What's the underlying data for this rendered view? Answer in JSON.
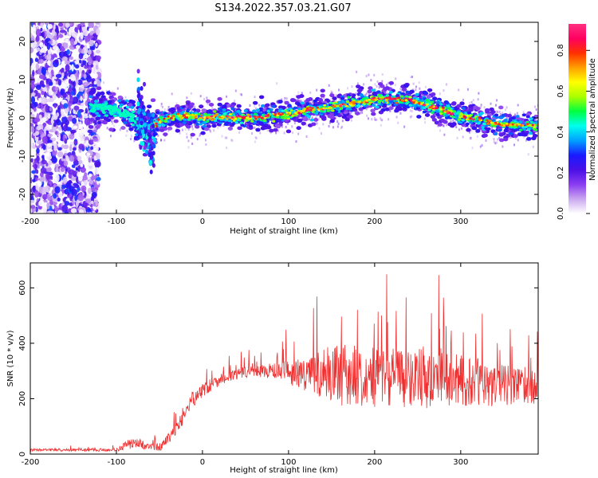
{
  "figure_title": "S134.2022.357.03.21.G07",
  "chart_data": [
    {
      "type": "heatmap",
      "panel": "spectrogram",
      "title": "S134.2022.357.03.21.G07",
      "xlabel": "Height of straight line (km)",
      "ylabel": "Frequency (Hz)",
      "xlim": [
        -200,
        390
      ],
      "ylim": [
        -25,
        25
      ],
      "x_ticks": [
        "-200",
        "-100",
        "0",
        "100",
        "200",
        "300"
      ],
      "y_ticks": [
        "-20",
        "-10",
        "0",
        "10",
        "20"
      ],
      "colorbar": {
        "label": "Normalized spectral amplitude",
        "range": [
          0,
          0.93
        ],
        "ticks": [
          "0.0",
          "0.2",
          "0.4",
          "0.6",
          "0.8"
        ],
        "colors": [
          "#ffffff",
          "#c9a6f0",
          "#8a3cf0",
          "#4a10e6",
          "#1a1aff",
          "#00a0ff",
          "#00ffee",
          "#00ff40",
          "#aaff00",
          "#ffff00",
          "#ffa000",
          "#ff3000",
          "#ff0060",
          "#ff3080"
        ]
      },
      "ridge_frequency_hz": {
        "x": [
          -120,
          -100,
          -80,
          -70,
          -60,
          -40,
          -20,
          0,
          20,
          40,
          60,
          80,
          100,
          120,
          140,
          160,
          180,
          200,
          220,
          240,
          260,
          280,
          300,
          320,
          340,
          360,
          380
        ],
        "y": [
          3,
          2,
          0,
          -4,
          -2,
          0,
          0.5,
          0,
          0.3,
          0,
          0,
          0.7,
          1,
          2,
          2.5,
          3.3,
          4,
          4.8,
          5,
          4.5,
          3.5,
          2,
          0.5,
          -0.5,
          -1.5,
          -1.8,
          -2
        ]
      },
      "noisy_region_km": [
        -200,
        -120
      ]
    },
    {
      "type": "line",
      "panel": "snr",
      "xlabel": "Height of straight line (km)",
      "ylabel": "SNR (10 * v/v)",
      "xlim": [
        -200,
        390
      ],
      "ylim": [
        0,
        690
      ],
      "x_ticks": [
        "-200",
        "-100",
        "0",
        "100",
        "200",
        "300"
      ],
      "y_ticks": [
        "0",
        "200",
        "400",
        "600"
      ],
      "color": "#ee3030",
      "series": [
        {
          "envelope_x": [
            -200,
            -100,
            -90,
            -80,
            -70,
            -60,
            -50,
            -40,
            -30,
            -20,
            -10,
            0,
            20,
            40,
            60,
            80,
            100,
            120,
            140,
            160,
            180,
            200,
            220,
            240,
            260,
            280,
            300,
            320,
            340,
            360,
            380
          ],
          "mean": [
            15,
            15,
            30,
            40,
            35,
            25,
            25,
            50,
            90,
            150,
            200,
            230,
            270,
            290,
            300,
            300,
            295,
            290,
            290,
            285,
            285,
            280,
            280,
            275,
            270,
            270,
            265,
            260,
            250,
            250,
            245
          ],
          "spread": [
            8,
            10,
            25,
            35,
            30,
            20,
            25,
            40,
            50,
            50,
            50,
            50,
            40,
            40,
            40,
            50,
            80,
            120,
            170,
            200,
            200,
            200,
            200,
            200,
            190,
            180,
            170,
            160,
            140,
            130,
            120
          ]
        }
      ]
    }
  ]
}
